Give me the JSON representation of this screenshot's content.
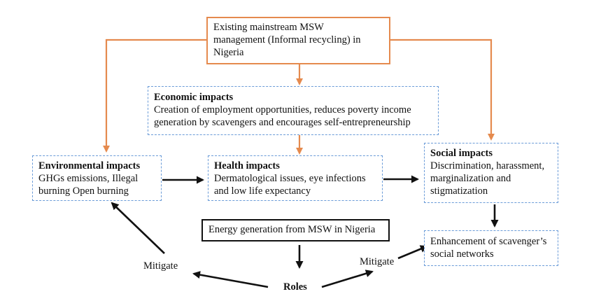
{
  "nodes": {
    "existing": {
      "lines": [
        "Existing mainstream MSW",
        "management (Informal recycling) in",
        "Nigeria"
      ]
    },
    "economic": {
      "title": "Economic impacts",
      "lines": [
        "Creation of employment opportunities, reduces poverty income",
        "generation by scavengers and encourages self-entrepreneurship"
      ]
    },
    "environmental": {
      "title": "Environmental impacts",
      "lines": [
        "GHGs emissions, Illegal",
        "burning Open burning"
      ]
    },
    "health": {
      "title": "Health impacts",
      "lines": [
        "Dermatological issues, eye infections",
        "and low life expectancy"
      ]
    },
    "social": {
      "title": "Social impacts",
      "lines": [
        "Discrimination, harassment,",
        "marginalization and",
        "stigmatization"
      ]
    },
    "energy": {
      "lines": [
        "Energy generation from MSW in Nigeria"
      ]
    },
    "enhancement": {
      "lines": [
        "Enhancement of scavenger’s",
        "social networks"
      ]
    }
  },
  "labels": {
    "mitigate_left": "Mitigate",
    "mitigate_right": "Mitigate",
    "roles": "Roles"
  },
  "colors": {
    "orange": "#e58a4e",
    "dashed_blue": "#6a9bd8",
    "black": "#111111"
  }
}
